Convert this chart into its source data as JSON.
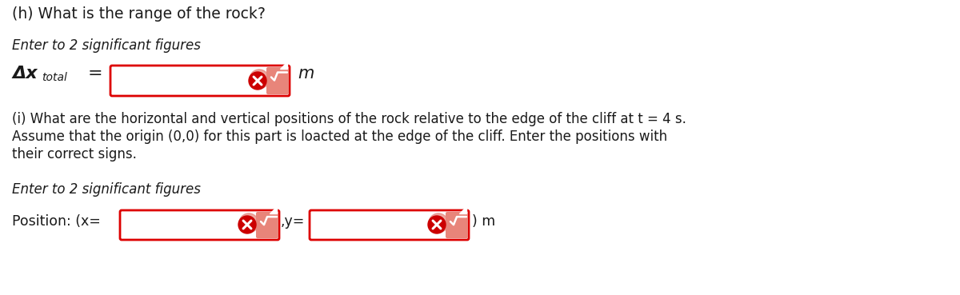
{
  "bg_color": "#ffffff",
  "title_h": "(h) What is the range of the rock?",
  "subtitle_h": "Enter to 2 significant figures",
  "unit_h": "m",
  "title_i_line1": "(i) What are the horizontal and vertical positions of the rock relative to the edge of the cliff at t = 4 s.",
  "title_i_line2": "Assume that the origin (0,0) for this part is loacted at the edge of the cliff. Enter the positions with",
  "title_i_line3": "their correct signs.",
  "subtitle_i": "Enter to 2 significant figures",
  "label_position": "Position: (x=",
  "label_y": ",y=",
  "label_end": ") m",
  "box_border": "#dd0000",
  "box_fill": "#ffffff",
  "box_fill_light": "#fdf0f0",
  "icon_red": "#cc0000",
  "icon_salmon": "#e8857a",
  "icon_white": "#ffffff",
  "text_color": "#1a1a1a"
}
